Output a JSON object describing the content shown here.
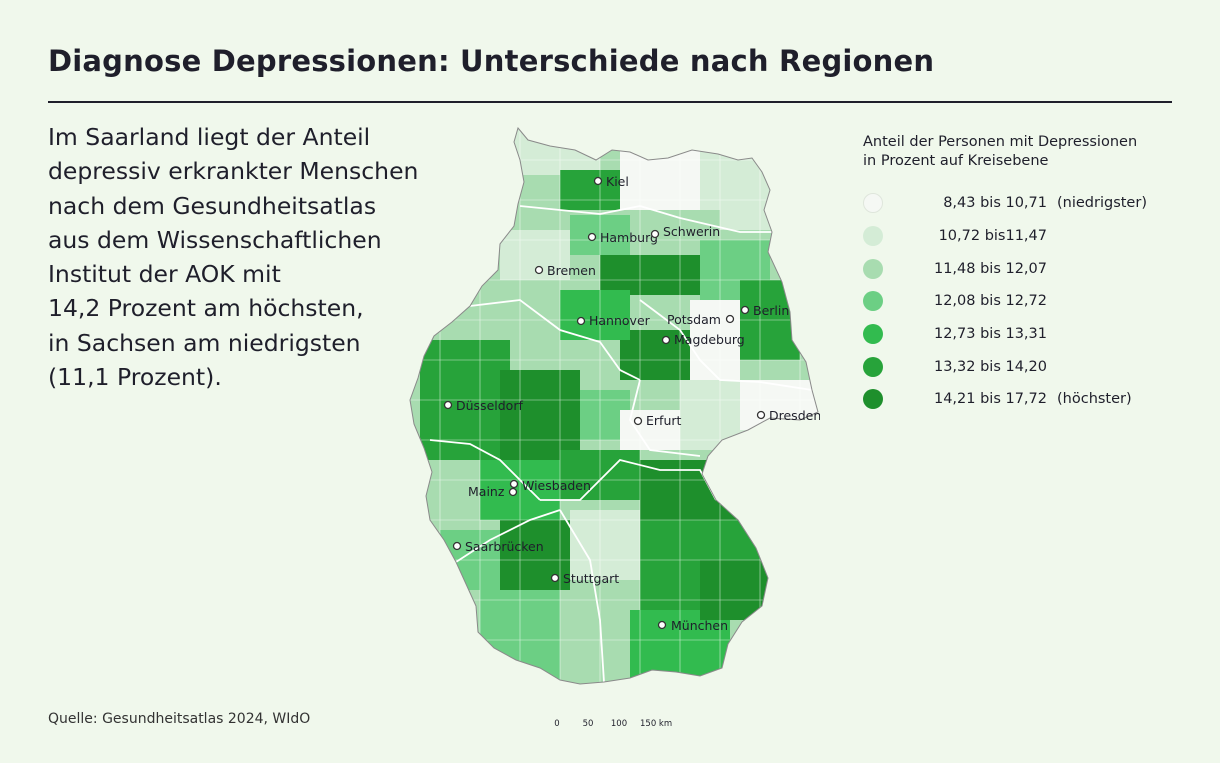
{
  "title": "Diagnose Depressionen: Unterschiede nach Regionen",
  "intro_lines": [
    "Im Saarland liegt der Anteil",
    "depressiv erkrankter Menschen",
    "nach dem Gesundheitsatlas",
    "aus dem Wissenschaftlichen",
    "Institut der AOK mit",
    "14,2 Prozent am höchsten,",
    "in Sachsen am niedrigsten",
    "(11,1 Prozent)."
  ],
  "legend": {
    "title_lines": [
      "Anteil der Personen mit Depressionen",
      "in Prozent auf Kreisebene"
    ],
    "items": [
      {
        "range": "8,43 bis 10,71",
        "note": "(niedrigster)",
        "color": "#f5f8f4"
      },
      {
        "range": "10,72 bis11,47",
        "note": "",
        "color": "#d4ecd6"
      },
      {
        "range": "11,48 bis 12,07",
        "note": "",
        "color": "#a8dcb0"
      },
      {
        "range": "12,08 bis 12,72",
        "note": "",
        "color": "#6ccf84"
      },
      {
        "range": "12,73 bis 13,31",
        "note": "",
        "color": "#32bb4f"
      },
      {
        "range": "13,32 bis 14,20",
        "note": "",
        "color": "#27a33a"
      },
      {
        "range": "14,21 bis 17,72",
        "note": "(höchster)",
        "color": "#1e8f2c"
      }
    ]
  },
  "cities": [
    {
      "name": "Kiel"
    },
    {
      "name": "Hamburg"
    },
    {
      "name": "Schwerin"
    },
    {
      "name": "Bremen"
    },
    {
      "name": "Hannover"
    },
    {
      "name": "Potsdam"
    },
    {
      "name": "Berlin"
    },
    {
      "name": "Magdeburg"
    },
    {
      "name": "Düsseldorf"
    },
    {
      "name": "Erfurt"
    },
    {
      "name": "Dresden"
    },
    {
      "name": "Mainz"
    },
    {
      "name": "Wiesbaden"
    },
    {
      "name": "Saarbrücken"
    },
    {
      "name": "Stuttgart"
    },
    {
      "name": "München"
    }
  ],
  "scale": {
    "ticks": [
      "0",
      "50",
      "100",
      "150 km"
    ]
  },
  "source": "Quelle: Gesundheitsatlas 2024, WIdO"
}
